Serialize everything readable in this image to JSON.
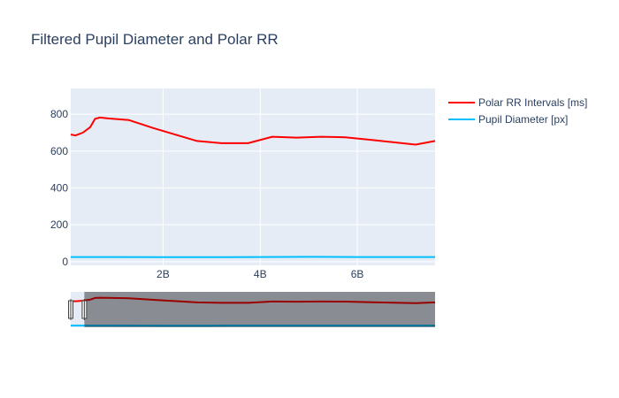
{
  "chart_data": {
    "type": "line",
    "title": "Filtered Pupil Diameter and Polar RR",
    "x_tick_labels": [
      "2B",
      "4B",
      "6B"
    ],
    "x_tick_values": [
      2,
      4,
      6
    ],
    "x_unit_note": "",
    "xlim": [
      0.1,
      7.6
    ],
    "y_tick_labels": [
      "0",
      "200",
      "400",
      "600",
      "800"
    ],
    "y_tick_values": [
      0,
      200,
      400,
      600,
      800
    ],
    "ylim": [
      -20,
      940
    ],
    "grid": true,
    "legend_position": "top-right",
    "series": [
      {
        "name": "Polar RR Intervals [ms]",
        "color": "#ff0000",
        "x": [
          0.1,
          0.2,
          0.35,
          0.5,
          0.6,
          0.7,
          0.85,
          1.3,
          1.8,
          2.7,
          3.2,
          3.75,
          4.25,
          4.75,
          5.25,
          5.75,
          6.3,
          7.2,
          7.6
        ],
        "y": [
          690,
          685,
          700,
          730,
          775,
          782,
          778,
          768,
          725,
          655,
          643,
          643,
          678,
          673,
          678,
          675,
          660,
          635,
          655
        ]
      },
      {
        "name": "Pupil Diameter [px]",
        "color": "#00bfff",
        "x": [
          0.1,
          1.0,
          2.0,
          3.0,
          4.0,
          5.0,
          6.0,
          7.0,
          7.6
        ],
        "y": [
          25,
          25,
          24,
          24,
          25,
          26,
          25,
          25,
          25
        ]
      }
    ],
    "rangeslider": {
      "selected_range": [
        0.38,
        7.6
      ]
    }
  }
}
